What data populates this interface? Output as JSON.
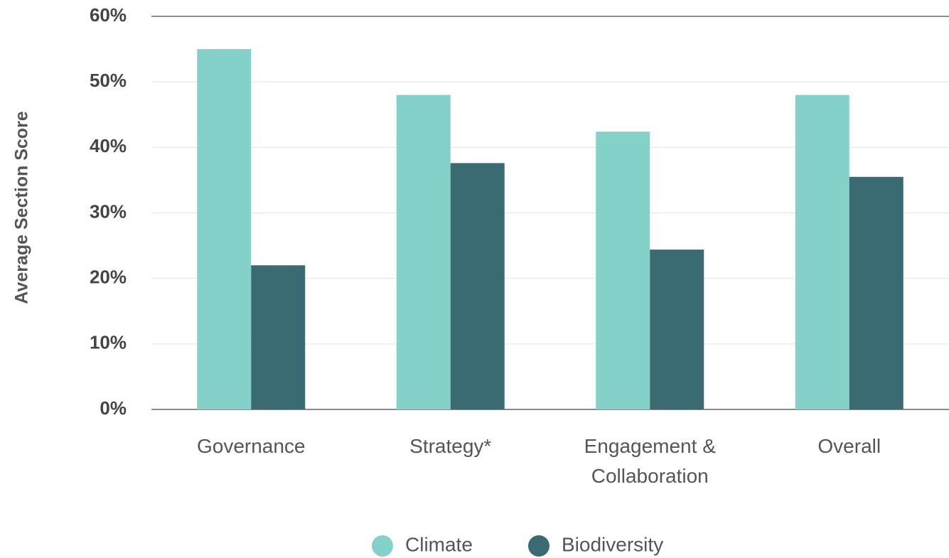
{
  "chart_data": {
    "type": "bar",
    "y_axis_label": "Average Section Score",
    "categories": [
      "Governance",
      "Strategy*",
      "Engagement & Collaboration",
      "Overall"
    ],
    "series": [
      {
        "name": "Climate",
        "color": "#84d1c9",
        "values": [
          55,
          48,
          42.4,
          48
        ]
      },
      {
        "name": "Biodiversity",
        "color": "#3a6b73",
        "values": [
          22,
          37.6,
          24.4,
          35.5
        ]
      }
    ],
    "ylim": [
      0,
      60
    ],
    "yticks": [
      {
        "value": 0,
        "label": "0%"
      },
      {
        "value": 10,
        "label": "10%"
      },
      {
        "value": 20,
        "label": "20%"
      },
      {
        "value": 30,
        "label": "30%"
      },
      {
        "value": 40,
        "label": "40%"
      },
      {
        "value": 50,
        "label": "50%"
      },
      {
        "value": 60,
        "label": "60%"
      }
    ],
    "grid": true,
    "legend": "bottom"
  }
}
